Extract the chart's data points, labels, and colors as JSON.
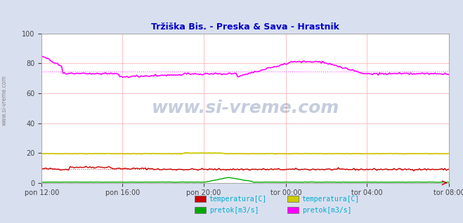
{
  "title": "Tržiška Bis. - Preska & Sava - Hrastnik",
  "title_color": "#0000cc",
  "bg_color": "#d8e0f0",
  "plot_bg_color": "#ffffff",
  "grid_color": "#ffaaaa",
  "watermark": "www.si-vreme.com",
  "ylim": [
    0,
    100
  ],
  "yticks": [
    0,
    20,
    40,
    60,
    80,
    100
  ],
  "xlabel_color": "#444444",
  "xtick_labels": [
    "pon 12:00",
    "pon 16:00",
    "pon 20:00",
    "tor 00:00",
    "tor 04:00",
    "tor 08:00"
  ],
  "n_points": 288,
  "series": {
    "trziska_temp": {
      "color": "#cc0000",
      "dotted_color": "#cc0000",
      "avg": 9.0,
      "description": "temperatura[C] (Tržiška Bis.)"
    },
    "trziska_pretok": {
      "color": "#00aa00",
      "avg": 0.5,
      "description": "pretok[m3/s] (Tržiška Bis.)"
    },
    "sava_temp": {
      "color": "#cccc00",
      "avg": 19.5,
      "description": "temperatura[C] (Sava)"
    },
    "sava_pretok": {
      "color": "#ff00ff",
      "avg": 73.0,
      "description": "pretok[m3/s] (Sava)"
    }
  },
  "legend_items": [
    {
      "label": "temperatura[C]",
      "color": "#cc0000"
    },
    {
      "label": "pretok[m3/s]",
      "color": "#00aa00"
    },
    {
      "label": "temperatura[C]",
      "color": "#cccc00"
    },
    {
      "label": "pretok[m3/s]",
      "color": "#ff00ff"
    }
  ]
}
